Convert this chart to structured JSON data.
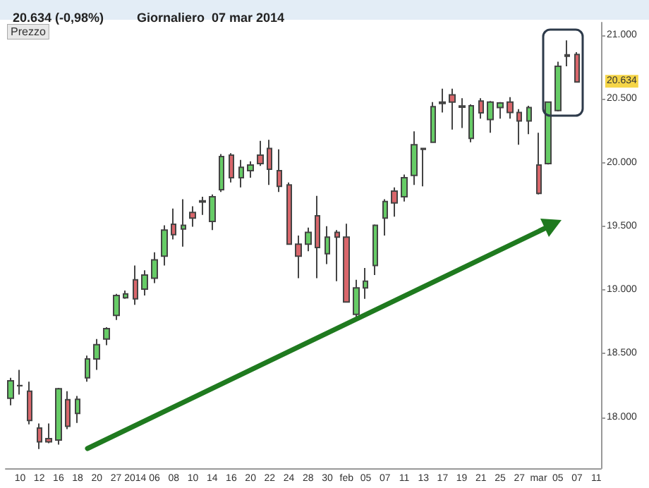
{
  "chart_data": {
    "type": "candlestick",
    "title": "20.634 (-0,98%)",
    "subtitle": "Giornaliero  07 mar 2014",
    "annotations": [
      "Prezzo",
      {
        "text": "20.634",
        "y": 20634
      }
    ],
    "categories": [
      null,
      "10",
      null,
      "12",
      null,
      "16",
      null,
      "18",
      null,
      "20",
      null,
      "27",
      null,
      "2014",
      null,
      "06",
      null,
      "08",
      null,
      "10",
      null,
      "14",
      null,
      "16",
      null,
      "20",
      null,
      "22",
      null,
      "24",
      null,
      "28",
      null,
      "30",
      null,
      "feb",
      null,
      "05",
      null,
      "07",
      null,
      "11",
      null,
      "13",
      null,
      "17",
      null,
      "19",
      null,
      "21",
      null,
      "25",
      null,
      "27",
      null,
      "mar",
      null,
      "05",
      null,
      "07",
      null,
      "11"
    ],
    "ohlc": [
      [
        18150,
        18310,
        18094,
        18287
      ],
      [
        18250,
        18373,
        18179,
        18248
      ],
      [
        18205,
        18280,
        17945,
        17975
      ],
      [
        17915,
        17952,
        17751,
        17807
      ],
      [
        17833,
        17952,
        17796,
        17807
      ],
      [
        17822,
        18231,
        17785,
        18224
      ],
      [
        18138,
        18205,
        17908,
        17930
      ],
      [
        18030,
        18168,
        17956,
        18142
      ],
      [
        18310,
        18485,
        18280,
        18459
      ],
      [
        18459,
        18615,
        18373,
        18570
      ],
      [
        18615,
        18708,
        18567,
        18697
      ],
      [
        18801,
        18969,
        18764,
        18957
      ],
      [
        18939,
        18995,
        18931,
        18969
      ],
      [
        19080,
        19192,
        18883,
        18931
      ],
      [
        19006,
        19155,
        18957,
        19118
      ],
      [
        19092,
        19296,
        19054,
        19237
      ],
      [
        19266,
        19508,
        19192,
        19471
      ],
      [
        19516,
        19639,
        19397,
        19434
      ],
      [
        19479,
        19713,
        19341,
        19508
      ],
      [
        19609,
        19657,
        19497,
        19564
      ],
      [
        19690,
        19732,
        19590,
        19700
      ],
      [
        19538,
        19750,
        19471,
        19732
      ],
      [
        19788,
        20067,
        19769,
        20048
      ],
      [
        20059,
        20074,
        19844,
        19881
      ],
      [
        19881,
        20022,
        19806,
        19963
      ],
      [
        19937,
        20011,
        19881,
        19981
      ],
      [
        20059,
        20171,
        19974,
        19992
      ],
      [
        20112,
        20179,
        19825,
        19948
      ],
      [
        19937,
        20104,
        19769,
        19814
      ],
      [
        19825,
        19844,
        19355,
        19360
      ],
      [
        19360,
        19427,
        19092,
        19266
      ],
      [
        19360,
        19490,
        19304,
        19453
      ],
      [
        19583,
        19739,
        19092,
        19333
      ],
      [
        19285,
        19501,
        19203,
        19415
      ],
      [
        19453,
        19471,
        19069,
        19415
      ],
      [
        19415,
        19520,
        18900,
        18905
      ],
      [
        18809,
        19080,
        18790,
        19017
      ],
      [
        19017,
        19173,
        18931,
        19069
      ],
      [
        19192,
        19515,
        19118,
        19508
      ],
      [
        19564,
        19713,
        19427,
        19695
      ],
      [
        19777,
        19806,
        19575,
        19683
      ],
      [
        19732,
        19907,
        19695,
        19881
      ],
      [
        19899,
        20246,
        19825,
        20141
      ],
      [
        20105,
        20111,
        19814,
        20111
      ],
      [
        20160,
        20476,
        20155,
        20439
      ],
      [
        20465,
        20581,
        20394,
        20475
      ],
      [
        20532,
        20581,
        20260,
        20476
      ],
      [
        20445,
        20506,
        20272,
        20435
      ],
      [
        20190,
        20458,
        20160,
        20447
      ],
      [
        20484,
        20506,
        20346,
        20391
      ],
      [
        20339,
        20484,
        20234,
        20476
      ],
      [
        20432,
        20476,
        20346,
        20469
      ],
      [
        20476,
        20514,
        20346,
        20394
      ],
      [
        20394,
        20420,
        20141,
        20327
      ],
      [
        20327,
        20447,
        20223,
        20432
      ],
      [
        19981,
        20234,
        19750,
        19758
      ],
      [
        19992,
        20480,
        19985,
        20476
      ],
      [
        20409,
        20793,
        20402,
        20756
      ],
      [
        20836,
        20960,
        20756,
        20846
      ],
      [
        20849,
        20868,
        20630,
        20634
      ],
      null,
      null
    ],
    "colors": [
      "#66cc66",
      "#333333",
      "#d9666b",
      "#d9666b",
      "#d9666b",
      "#66cc66",
      "#d9666b",
      "#66cc66",
      "#66cc66",
      "#66cc66",
      "#66cc66",
      "#66cc66",
      "#66cc66",
      "#d9666b",
      "#66cc66",
      "#66cc66",
      "#66cc66",
      "#d9666b",
      "#66cc66",
      "#d9666b",
      "#66cc66",
      "#66cc66",
      "#66cc66",
      "#d9666b",
      "#66cc66",
      "#66cc66",
      "#d9666b",
      "#d9666b",
      "#d9666b",
      "#d9666b",
      "#d9666b",
      "#66cc66",
      "#d9666b",
      "#66cc66",
      "#d9666b",
      "#d9666b",
      "#66cc66",
      "#66cc66",
      "#66cc66",
      "#66cc66",
      "#d9666b",
      "#66cc66",
      "#66cc66",
      "#333333",
      "#66cc66",
      "#333333",
      "#d9666b",
      "#333333",
      "#66cc66",
      "#d9666b",
      "#66cc66",
      "#66cc66",
      "#d9666b",
      "#d9666b",
      "#66cc66",
      "#d9666b",
      "#66cc66",
      "#66cc66",
      "#333333",
      "#d9666b",
      null,
      null
    ],
    "ylim": [
      17600,
      21100
    ],
    "yticks": [
      {
        "value": 18000,
        "label": "18.000"
      },
      {
        "value": 18500,
        "label": "18.500"
      },
      {
        "value": 19000,
        "label": "19.000"
      },
      {
        "value": 19500,
        "label": "19.500"
      },
      {
        "value": 20000,
        "label": "20.000"
      },
      {
        "value": 20500,
        "label": "20.500"
      },
      {
        "value": 21000,
        "label": "21.000"
      }
    ],
    "tick_labels": true
  }
}
